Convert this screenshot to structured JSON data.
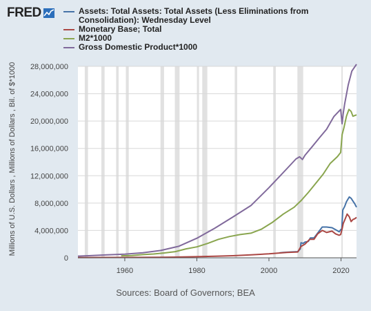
{
  "logo": {
    "text": "FRED"
  },
  "sources": "Sources: Board of Governors; BEA",
  "chart_data": {
    "type": "line",
    "ylabel": "Millions of U.S. Dollars , Millions of Dollars , Bil. of $*1000",
    "xlabel": "",
    "xlim": [
      1947,
      2024.3
    ],
    "ylim": [
      0,
      28000000
    ],
    "y_ticks": [
      0,
      4000000,
      8000000,
      12000000,
      16000000,
      20000000,
      24000000,
      28000000
    ],
    "y_tick_labels": [
      "0",
      "4,000,000",
      "8,000,000",
      "12,000,000",
      "16,000,000",
      "20,000,000",
      "24,000,000",
      "28,000,000"
    ],
    "x_ticks": [
      1960,
      1980,
      2000,
      2020
    ],
    "x_tick_labels": [
      "1960",
      "1980",
      "2000",
      "2020"
    ],
    "grid": true,
    "recessions": [
      [
        1948.9,
        1949.8
      ],
      [
        1953.5,
        1954.4
      ],
      [
        1957.6,
        1958.3
      ],
      [
        1960.3,
        1961.1
      ],
      [
        1969.9,
        1970.9
      ],
      [
        1973.9,
        1975.2
      ],
      [
        1980.0,
        1980.6
      ],
      [
        1981.5,
        1982.9
      ],
      [
        1990.5,
        1991.2
      ],
      [
        2001.2,
        2001.9
      ],
      [
        2007.9,
        2009.5
      ],
      [
        2020.1,
        2020.4
      ]
    ],
    "series": [
      {
        "name": "Assets: Total Assets: Total Assets (Less Eliminations from Consolidation): Wednesday Level",
        "color": "#4572a7",
        "x": [
          2002.9,
          2004,
          2006,
          2007,
          2008.0,
          2008.7,
          2008.9,
          2009.5,
          2010,
          2010.9,
          2011.5,
          2012.5,
          2013.5,
          2014.8,
          2016,
          2017.5,
          2018.5,
          2019.5,
          2019.9,
          2020.2,
          2020.5,
          2021,
          2021.5,
          2022.3,
          2022.8,
          2023.3,
          2023.8,
          2024.3
        ],
        "y": [
          720000,
          780000,
          850000,
          870000,
          900000,
          1300000,
          2200000,
          2100000,
          2300000,
          2400000,
          2900000,
          2900000,
          3600000,
          4500000,
          4500000,
          4400000,
          4100000,
          3800000,
          4100000,
          4200000,
          7000000,
          7500000,
          8200000,
          8900000,
          8700000,
          8300000,
          7900000,
          7400000
        ]
      },
      {
        "name": "Monetary Base; Total",
        "color": "#aa4643",
        "x": [
          1947,
          1955,
          1960,
          1965,
          1970,
          1975,
          1980,
          1985,
          1990,
          1995,
          2000,
          2005,
          2008.0,
          2008.7,
          2009.0,
          2010,
          2011.3,
          2012.5,
          2013.5,
          2014.8,
          2016,
          2017.5,
          2018.5,
          2019.5,
          2019.9,
          2020.3,
          2020.6,
          2021,
          2021.7,
          2022.3,
          2022.8,
          2023.3,
          2023.8,
          2024.3
        ],
        "y": [
          40000,
          50000,
          50000,
          60000,
          80000,
          110000,
          160000,
          220000,
          300000,
          430000,
          580000,
          790000,
          850000,
          1500000,
          1700000,
          2000000,
          2700000,
          2700000,
          3500000,
          4000000,
          3700000,
          3900000,
          3500000,
          3300000,
          3400000,
          4200000,
          5000000,
          5500000,
          6400000,
          6000000,
          5300000,
          5600000,
          5700000,
          5900000
        ]
      },
      {
        "name": "M2*1000",
        "color": "#89a54e",
        "x": [
          1959,
          1962,
          1965,
          1968,
          1971,
          1974,
          1977,
          1980,
          1983,
          1986,
          1989,
          1992,
          1995,
          1998,
          2001,
          2004,
          2007,
          2009,
          2011,
          2013,
          2015,
          2017,
          2019,
          2019.9,
          2020.3,
          2020.8,
          2021.5,
          2022.2,
          2022.8,
          2023.3,
          2023.8,
          2024.3
        ],
        "y": [
          290000,
          330000,
          460000,
          560000,
          710000,
          900000,
          1300000,
          1600000,
          2100000,
          2700000,
          3100000,
          3400000,
          3600000,
          4200000,
          5200000,
          6400000,
          7400000,
          8400000,
          9600000,
          10900000,
          12200000,
          13800000,
          14800000,
          15400000,
          18000000,
          19000000,
          20700000,
          21700000,
          21400000,
          20700000,
          20800000,
          20900000
        ]
      },
      {
        "name": "Gross Domestic Product*1000",
        "color": "#80699b",
        "x": [
          1947,
          1950,
          1955,
          1960,
          1965,
          1970,
          1975,
          1980,
          1985,
          1990,
          1995,
          2000,
          2005,
          2007.5,
          2008.5,
          2009.3,
          2010,
          2012,
          2014,
          2016,
          2018,
          2019.9,
          2020.3,
          2020.6,
          2021,
          2022,
          2023,
          2024.3
        ],
        "y": [
          240000,
          300000,
          420000,
          540000,
          740000,
          1070000,
          1690000,
          2860000,
          4340000,
          5960000,
          7640000,
          10250000,
          13040000,
          14450000,
          14770000,
          14370000,
          15000000,
          16250000,
          17550000,
          18800000,
          20650000,
          21700000,
          19600000,
          21100000,
          22500000,
          25300000,
          27300000,
          28300000
        ]
      }
    ]
  }
}
